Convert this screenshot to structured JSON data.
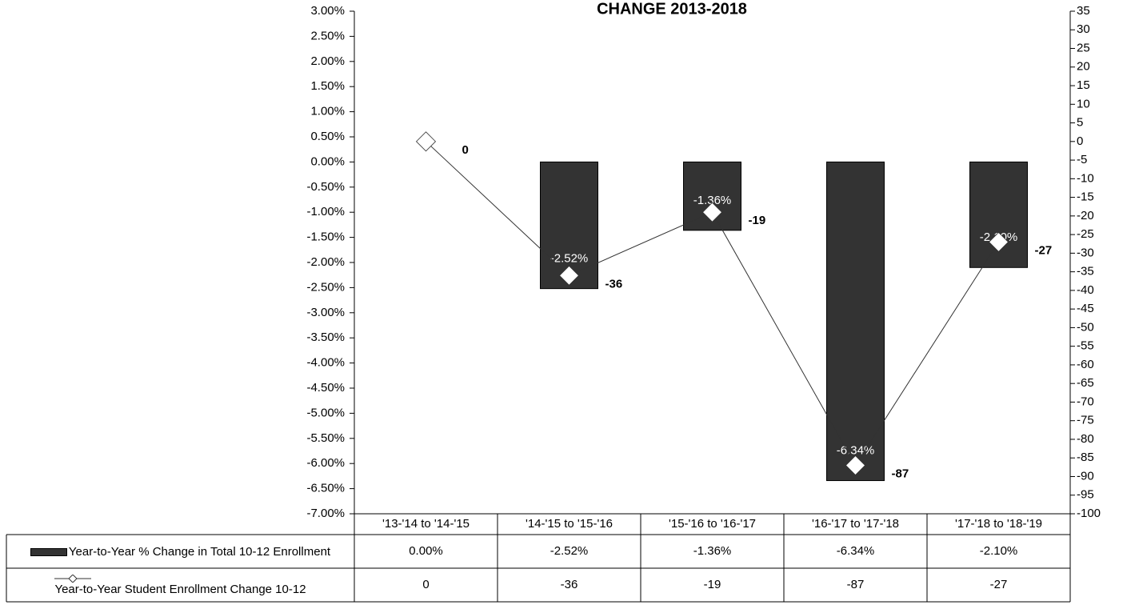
{
  "chart_data": {
    "type": "bar",
    "title": "CHANGE 2013-2018",
    "categories": [
      "'13-'14 to '14-'15",
      "'14-'15 to '15-'16",
      "'15-'16 to '16-'17",
      "'16-'17 to '17-'18",
      "'17-'18 to '18-'19"
    ],
    "series": [
      {
        "name": "Year-to-Year % Change in Total 10-12 Enrollment",
        "type": "bar",
        "color": "#333333",
        "values": [
          0,
          -2.52,
          -1.36,
          -6.34,
          -2.1
        ],
        "value_labels": [
          "0.00%",
          "-2.52%",
          "-1.36%",
          "-6.34%",
          "-2.10%"
        ]
      },
      {
        "name": "Year-to-Year Student Enrollment Change 10-12",
        "type": "line",
        "axis": "y2",
        "color": "#333333",
        "values": [
          0,
          -36,
          -19,
          -87,
          -27
        ]
      }
    ],
    "ylim": [
      -7,
      3
    ],
    "yticks": [
      {
        "value": 3,
        "label": "3.00%"
      },
      {
        "value": 2.5,
        "label": "2.50%"
      },
      {
        "value": 2,
        "label": "2.00%"
      },
      {
        "value": 1.5,
        "label": "1.50%"
      },
      {
        "value": 1,
        "label": "1.00%"
      },
      {
        "value": 0.5,
        "label": "0.50%"
      },
      {
        "value": 0,
        "label": "0.00%"
      },
      {
        "value": -0.5,
        "label": "-0.50%"
      },
      {
        "value": -1,
        "label": "-1.00%"
      },
      {
        "value": -1.5,
        "label": "-1.50%"
      },
      {
        "value": -2,
        "label": "-2.00%"
      },
      {
        "value": -2.5,
        "label": "-2.50%"
      },
      {
        "value": -3,
        "label": "-3.00%"
      },
      {
        "value": -3.5,
        "label": "-3.50%"
      },
      {
        "value": -4,
        "label": "-4.00%"
      },
      {
        "value": -4.5,
        "label": "-4.50%"
      },
      {
        "value": -5,
        "label": "-5.00%"
      },
      {
        "value": -5.5,
        "label": "-5.50%"
      },
      {
        "value": -6,
        "label": "-6.00%"
      },
      {
        "value": -6.5,
        "label": "-6.50%"
      },
      {
        "value": -7,
        "label": "-7.00%"
      }
    ],
    "y2lim": [
      -100,
      35
    ],
    "y2ticks": [
      35,
      30,
      25,
      20,
      15,
      10,
      5,
      0,
      -5,
      -10,
      -15,
      -20,
      -25,
      -30,
      -35,
      -40,
      -45,
      -50,
      -55,
      -60,
      -65,
      -70,
      -75,
      -80,
      -85,
      -90,
      -95,
      -100
    ],
    "grid": false
  }
}
